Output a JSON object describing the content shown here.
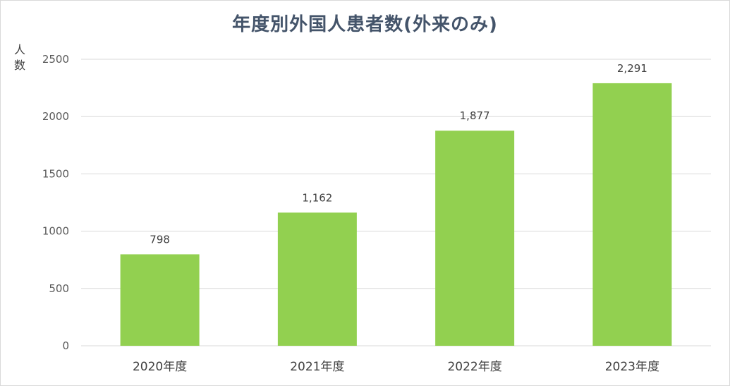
{
  "chart_data": {
    "type": "bar",
    "title": "年度別外国人患者数(外来のみ)",
    "ylabel": "人数",
    "xlabel": "",
    "categories": [
      "2020年度",
      "2021年度",
      "2022年度",
      "2023年度"
    ],
    "values": [
      798,
      1162,
      1877,
      2291
    ],
    "data_labels": [
      "798",
      "1,162",
      "1,877",
      "2,291"
    ],
    "ylim": [
      0,
      2500
    ],
    "yticks": [
      0,
      500,
      1000,
      1500,
      2000,
      2500
    ],
    "grid": true,
    "legend": "none",
    "colors": {
      "bar": "#92d050",
      "grid": "#d9d9d9",
      "title": "#44546a"
    }
  }
}
